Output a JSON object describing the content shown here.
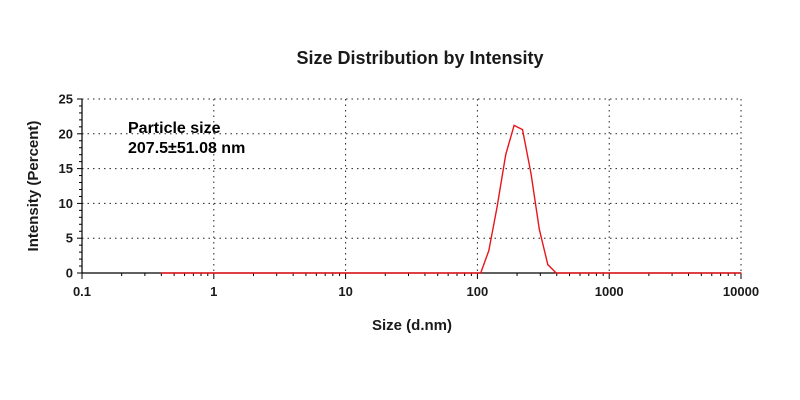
{
  "chart_data": {
    "type": "line",
    "title": "Size Distribution by Intensity",
    "xlabel": "Size (d.nm)",
    "ylabel": "Intensity (Percent)",
    "xscale": "log",
    "xlim": [
      0.1,
      10000
    ],
    "ylim": [
      0,
      25
    ],
    "x_ticks": [
      0.1,
      1,
      10,
      100,
      1000,
      10000
    ],
    "x_tick_labels": [
      "0.1",
      "1",
      "10",
      "100",
      "1000",
      "10000"
    ],
    "y_ticks": [
      0,
      5,
      10,
      15,
      20,
      25
    ],
    "y_tick_labels": [
      "0",
      "5",
      "10",
      "15",
      "20",
      "25"
    ],
    "grid": true,
    "annotation": {
      "line1": "Particle size",
      "line2": "207.5±51.08 nm"
    },
    "series": [
      {
        "color": "#e8161b",
        "x": [
          0.4,
          106,
          122,
          141,
          164,
          190,
          220,
          255,
          295,
          342,
          396,
          10000
        ],
        "y": [
          0,
          0,
          3.2,
          9.5,
          17.0,
          21.2,
          20.6,
          14.3,
          6.3,
          1.2,
          0,
          0
        ]
      }
    ]
  }
}
